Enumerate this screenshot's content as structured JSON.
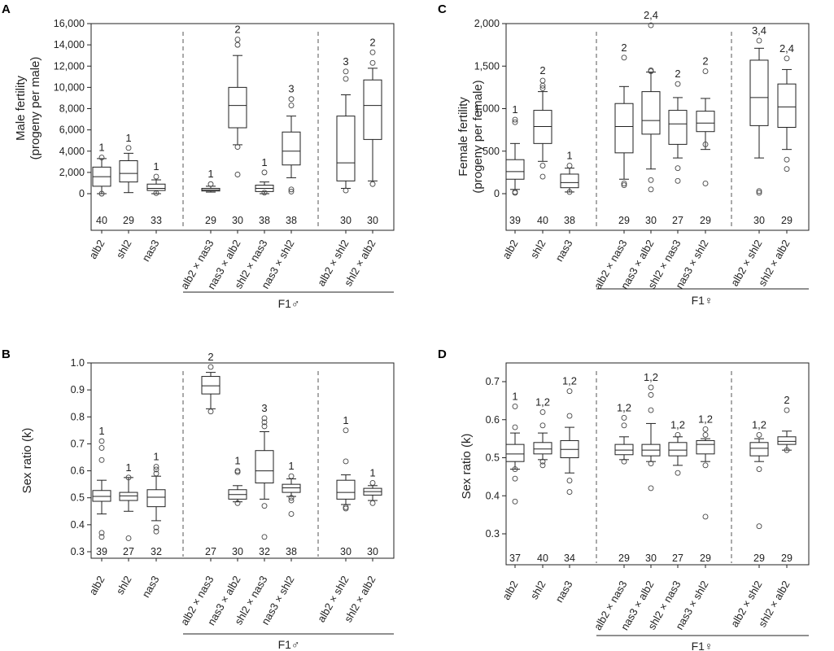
{
  "chart_data": [
    {
      "panel": "A",
      "type": "box",
      "ylabel": [
        "Male fertility",
        "(progeny per male)"
      ],
      "ylim": [
        -1600,
        16000
      ],
      "yticks": [
        0,
        2000,
        4000,
        6000,
        8000,
        10000,
        12000,
        14000,
        16000
      ],
      "ytick_labels": [
        "0",
        "2,000",
        "4,000",
        "6,000",
        "8,000",
        "10,000",
        "12,000",
        "14,000",
        "16,000"
      ],
      "group_label": "F1♂",
      "categories": [
        "alb2",
        "shl2",
        "nas3",
        "alb2 × nas3",
        "nas3 × alb2",
        "shl2 × nas3",
        "nas3 × shl2",
        "alb2 × shl2",
        "shl2 × alb2"
      ],
      "n": [
        40,
        29,
        33,
        29,
        30,
        38,
        38,
        30,
        30
      ],
      "significance": [
        "1",
        "1",
        "1",
        "1",
        "2",
        "1",
        "3",
        "3",
        "2"
      ],
      "boxes": [
        {
          "q1": 700,
          "median": 1600,
          "q3": 2500,
          "whislo": 0,
          "whishi": 3300,
          "fliers": [
            3400,
            0
          ]
        },
        {
          "q1": 1100,
          "median": 1900,
          "q3": 3100,
          "whislo": 100,
          "whishi": 3800,
          "fliers": [
            4300
          ]
        },
        {
          "q1": 300,
          "median": 500,
          "q3": 900,
          "whislo": 0,
          "whishi": 1300,
          "fliers": [
            1600,
            50
          ]
        },
        {
          "q1": 250,
          "median": 350,
          "q3": 500,
          "whislo": 150,
          "whishi": 700,
          "fliers": [
            900
          ]
        },
        {
          "q1": 6200,
          "median": 8300,
          "q3": 10000,
          "whislo": 4600,
          "whishi": 13000,
          "fliers": [
            14000,
            14500,
            4400,
            1800
          ]
        },
        {
          "q1": 200,
          "median": 500,
          "q3": 800,
          "whislo": 0,
          "whishi": 1100,
          "fliers": [
            2000,
            100
          ]
        },
        {
          "q1": 2700,
          "median": 4000,
          "q3": 5800,
          "whislo": 1500,
          "whishi": 7300,
          "fliers": [
            8300,
            8900,
            400,
            200
          ]
        },
        {
          "q1": 1200,
          "median": 2900,
          "q3": 7300,
          "whislo": 500,
          "whishi": 9300,
          "fliers": [
            10800,
            11500,
            300
          ]
        },
        {
          "q1": 5100,
          "median": 8300,
          "q3": 10700,
          "whislo": 1200,
          "whishi": 11800,
          "fliers": [
            12300,
            13300,
            900
          ]
        }
      ]
    },
    {
      "panel": "B",
      "type": "box",
      "ylabel": [
        "Sex ratio (k)"
      ],
      "ylim": [
        0.29,
        1.0
      ],
      "yticks": [
        0.3,
        0.4,
        0.5,
        0.6,
        0.7,
        0.8,
        0.9,
        1.0
      ],
      "ytick_labels": [
        "0.3",
        "0.4",
        "0.5",
        "0.6",
        "0.7",
        "0.8",
        "0.9",
        "1.0"
      ],
      "group_label": "F1♂",
      "categories": [
        "alb2",
        "shl2",
        "nas3",
        "alb2 × nas3",
        "nas3 × alb2",
        "shl2 × nas3",
        "nas3 × shl2",
        "alb2 × shl2",
        "shl2 × alb2"
      ],
      "n": [
        39,
        27,
        32,
        27,
        30,
        32,
        38,
        30,
        30
      ],
      "significance": [
        "1",
        "1",
        "1",
        "2",
        "1",
        "3",
        "1",
        "1",
        "1"
      ],
      "boxes": [
        {
          "q1": 0.487,
          "median": 0.505,
          "q3": 0.527,
          "whislo": 0.44,
          "whishi": 0.565,
          "fliers": [
            0.71,
            0.685,
            0.64,
            0.37,
            0.355
          ]
        },
        {
          "q1": 0.49,
          "median": 0.507,
          "q3": 0.52,
          "whislo": 0.45,
          "whishi": 0.575,
          "fliers": [
            0.575,
            0.35
          ]
        },
        {
          "q1": 0.467,
          "median": 0.502,
          "q3": 0.53,
          "whislo": 0.415,
          "whishi": 0.58,
          "fliers": [
            0.615,
            0.605,
            0.59,
            0.39,
            0.375
          ]
        },
        {
          "q1": 0.885,
          "median": 0.915,
          "q3": 0.95,
          "whislo": 0.83,
          "whishi": 0.965,
          "fliers": [
            0.985,
            0.82
          ]
        },
        {
          "q1": 0.495,
          "median": 0.512,
          "q3": 0.53,
          "whislo": 0.485,
          "whishi": 0.545,
          "fliers": [
            0.6,
            0.595,
            0.48
          ]
        },
        {
          "q1": 0.555,
          "median": 0.6,
          "q3": 0.675,
          "whislo": 0.495,
          "whishi": 0.745,
          "fliers": [
            0.795,
            0.78,
            0.765,
            0.47,
            0.355
          ]
        },
        {
          "q1": 0.52,
          "median": 0.537,
          "q3": 0.55,
          "whislo": 0.505,
          "whishi": 0.57,
          "fliers": [
            0.58,
            0.5,
            0.49,
            0.44
          ]
        },
        {
          "q1": 0.495,
          "median": 0.52,
          "q3": 0.565,
          "whislo": 0.475,
          "whishi": 0.585,
          "fliers": [
            0.75,
            0.635,
            0.465,
            0.46
          ]
        },
        {
          "q1": 0.51,
          "median": 0.523,
          "q3": 0.535,
          "whislo": 0.49,
          "whishi": 0.545,
          "fliers": [
            0.555,
            0.48
          ]
        }
      ]
    },
    {
      "panel": "C",
      "type": "box",
      "ylabel": [
        "Female fertility",
        "(progeny per female)"
      ],
      "ylim": [
        -400,
        2300
      ],
      "yticks": [
        0,
        500,
        1000,
        1500,
        2000
      ],
      "ytick_labels": [
        "0",
        "500",
        "1,000",
        "1,500",
        "2,000"
      ],
      "group_label": "F1♀",
      "categories": [
        "alb2",
        "shl2",
        "nas3",
        "alb2 × nas3",
        "nas3 × alb2",
        "shl2 × nas3",
        "nas3 × shl2",
        "alb2 × shl2",
        "shl2 × alb2"
      ],
      "n": [
        39,
        40,
        38,
        29,
        30,
        27,
        29,
        30,
        29
      ],
      "significance": [
        "1",
        "2",
        "1",
        "2",
        "2,4",
        "2",
        "2",
        "3,4",
        "2,4"
      ],
      "boxes": [
        {
          "q1": 170,
          "median": 260,
          "q3": 400,
          "whislo": 50,
          "whishi": 590,
          "fliers": [
            870,
            840,
            20,
            10
          ]
        },
        {
          "q1": 590,
          "median": 790,
          "q3": 980,
          "whislo": 380,
          "whishi": 1200,
          "fliers": [
            1330,
            1270,
            1240,
            330,
            200
          ]
        },
        {
          "q1": 70,
          "median": 130,
          "q3": 230,
          "whislo": 20,
          "whishi": 300,
          "fliers": [
            330,
            20
          ]
        },
        {
          "q1": 480,
          "median": 790,
          "q3": 1060,
          "whislo": 170,
          "whishi": 1260,
          "fliers": [
            1600,
            120,
            100
          ]
        },
        {
          "q1": 700,
          "median": 860,
          "q3": 1200,
          "whislo": 290,
          "whishi": 1430,
          "fliers": [
            1980,
            1450,
            1440,
            160,
            50
          ]
        },
        {
          "q1": 580,
          "median": 820,
          "q3": 980,
          "whislo": 420,
          "whishi": 1130,
          "fliers": [
            1290,
            300,
            150
          ]
        },
        {
          "q1": 730,
          "median": 830,
          "q3": 970,
          "whislo": 520,
          "whishi": 1120,
          "fliers": [
            1440,
            580,
            120
          ]
        },
        {
          "q1": 800,
          "median": 1130,
          "q3": 1570,
          "whislo": 420,
          "whishi": 1710,
          "fliers": [
            1800,
            30,
            10
          ]
        },
        {
          "q1": 780,
          "median": 1020,
          "q3": 1290,
          "whislo": 520,
          "whishi": 1460,
          "fliers": [
            1590,
            400,
            290
          ]
        }
      ]
    },
    {
      "panel": "D",
      "type": "box",
      "ylabel": [
        "Sex ratio (k)"
      ],
      "ylim": [
        0.25,
        0.73
      ],
      "yticks": [
        0.3,
        0.4,
        0.5,
        0.6,
        0.7
      ],
      "ytick_labels": [
        "0.3",
        "0.4",
        "0.5",
        "0.6",
        "0.7"
      ],
      "group_label": "F1♀",
      "categories": [
        "alb2",
        "shl2",
        "nas3",
        "alb2 × nas3",
        "nas3 × alb2",
        "shl2 × nas3",
        "nas3 × shl2",
        "alb2 × shl2",
        "shl2 × alb2"
      ],
      "n": [
        37,
        40,
        34,
        29,
        30,
        27,
        29,
        29,
        29
      ],
      "significance": [
        "1",
        "1,2",
        "1,2",
        "1,2",
        "1,2",
        "1,2",
        "1,2",
        "1,2",
        "2"
      ],
      "boxes": [
        {
          "q1": 0.49,
          "median": 0.51,
          "q3": 0.535,
          "whislo": 0.47,
          "whishi": 0.565,
          "fliers": [
            0.635,
            0.58,
            0.47,
            0.445,
            0.385
          ]
        },
        {
          "q1": 0.51,
          "median": 0.523,
          "q3": 0.54,
          "whislo": 0.495,
          "whishi": 0.565,
          "fliers": [
            0.62,
            0.585,
            0.49,
            0.48
          ]
        },
        {
          "q1": 0.5,
          "median": 0.522,
          "q3": 0.545,
          "whislo": 0.46,
          "whishi": 0.58,
          "fliers": [
            0.675,
            0.61,
            0.44,
            0.41
          ]
        },
        {
          "q1": 0.508,
          "median": 0.52,
          "q3": 0.535,
          "whislo": 0.495,
          "whishi": 0.555,
          "fliers": [
            0.605,
            0.585,
            0.49
          ]
        },
        {
          "q1": 0.505,
          "median": 0.52,
          "q3": 0.535,
          "whislo": 0.49,
          "whishi": 0.59,
          "fliers": [
            0.685,
            0.665,
            0.625,
            0.485,
            0.42
          ]
        },
        {
          "q1": 0.505,
          "median": 0.52,
          "q3": 0.54,
          "whislo": 0.48,
          "whishi": 0.555,
          "fliers": [
            0.56,
            0.46
          ]
        },
        {
          "q1": 0.51,
          "median": 0.535,
          "q3": 0.545,
          "whislo": 0.49,
          "whishi": 0.55,
          "fliers": [
            0.575,
            0.56,
            0.48,
            0.345
          ]
        },
        {
          "q1": 0.505,
          "median": 0.525,
          "q3": 0.54,
          "whislo": 0.49,
          "whishi": 0.55,
          "fliers": [
            0.56,
            0.47,
            0.32
          ]
        },
        {
          "q1": 0.535,
          "median": 0.543,
          "q3": 0.555,
          "whislo": 0.52,
          "whishi": 0.57,
          "fliers": [
            0.625,
            0.52
          ]
        }
      ]
    }
  ]
}
